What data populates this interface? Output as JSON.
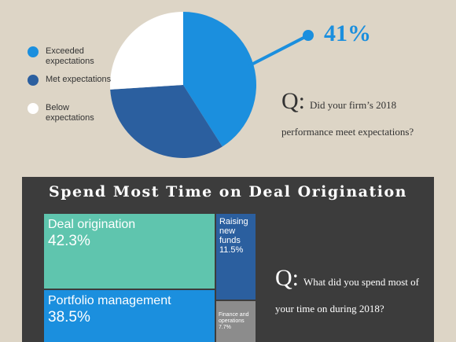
{
  "chart_data": [
    {
      "type": "pie",
      "categories": [
        "Exceeded expectations",
        "Met expectations",
        "Below expectations"
      ],
      "values": [
        41,
        33,
        26
      ],
      "value_labels": [
        "41%",
        null,
        null
      ],
      "colors": [
        "#1b8fde",
        "#2b5f9f",
        "#ffffff"
      ],
      "question": {
        "prefix": "Q:",
        "text": "Did your firm’s 2018 performance meet expectations?"
      }
    },
    {
      "type": "treemap",
      "title": "Spend Most Time on Deal Origination",
      "categories": [
        "Deal origination",
        "Portfolio management",
        "Raising new funds",
        "Finance and operations"
      ],
      "values": [
        42.3,
        38.5,
        11.5,
        7.7
      ],
      "value_labels": [
        "42.3%",
        "38.5%",
        "11.5%",
        "7.7%"
      ],
      "colors": [
        "#5fc5ae",
        "#1b8fde",
        "#2b5f9f",
        "#8c8c8c"
      ],
      "question": {
        "prefix": "Q:",
        "text": "What did you spend most of your time on during 2018?"
      }
    }
  ]
}
